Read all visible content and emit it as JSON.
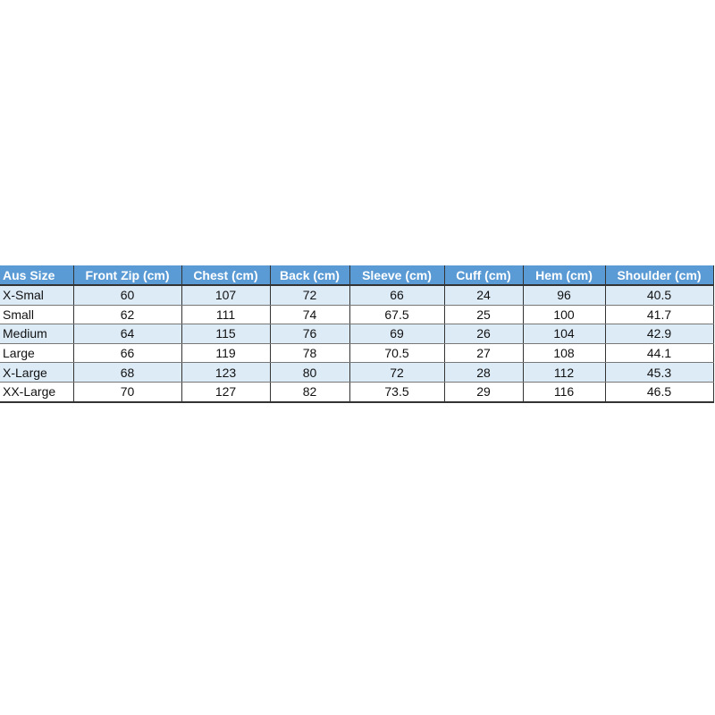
{
  "table": {
    "headers": [
      "Aus Size",
      "Front Zip (cm)",
      "Chest (cm)",
      "Back (cm)",
      "Sleeve (cm)",
      "Cuff (cm)",
      "Hem (cm)",
      "Shoulder (cm)"
    ],
    "rows": [
      [
        "X-Smal",
        "60",
        "107",
        "72",
        "66",
        "24",
        "96",
        "40.5"
      ],
      [
        "Small",
        "62",
        "111",
        "74",
        "67.5",
        "25",
        "100",
        "41.7"
      ],
      [
        "Medium",
        "64",
        "115",
        "76",
        "69",
        "26",
        "104",
        "42.9"
      ],
      [
        "Large",
        "66",
        "119",
        "78",
        "70.5",
        "27",
        "108",
        "44.1"
      ],
      [
        "X-Large",
        "68",
        "123",
        "80",
        "72",
        "28",
        "112",
        "45.3"
      ],
      [
        "XX-Large",
        "70",
        "127",
        "82",
        "73.5",
        "29",
        "116",
        "46.5"
      ]
    ],
    "colors": {
      "header_bg": "#5b9bd5",
      "band_bg": "#ddebf7"
    }
  }
}
